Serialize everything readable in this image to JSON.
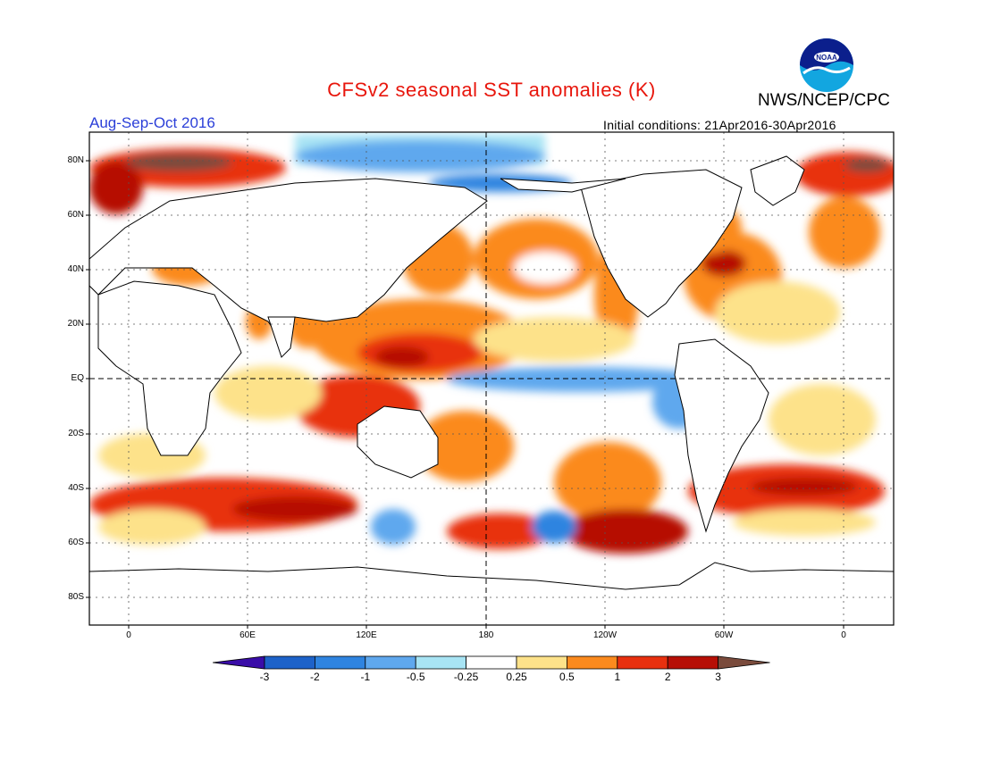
{
  "title": "CFSv2 seasonal SST anomalies (K)",
  "agency": "NWS/NCEP/CPC",
  "season": "Aug-Sep-Oct 2016",
  "initial_conditions": "Initial conditions: 21Apr2016-30Apr2016",
  "logo_text": "NOAA",
  "lat_labels": [
    "80N",
    "60N",
    "40N",
    "20N",
    "EQ",
    "20S",
    "40S",
    "60S",
    "80S"
  ],
  "lon_labels": [
    "0",
    "60E",
    "120E",
    "180",
    "120W",
    "60W",
    "0"
  ],
  "colorbar": {
    "labels": [
      "-3",
      "-2",
      "-1",
      "-0.5",
      "-0.25",
      "0.25",
      "0.5",
      "1",
      "2",
      "3"
    ],
    "colors": [
      "#3a0da8",
      "#1d62c9",
      "#2f84e0",
      "#5fa8ee",
      "#a8e4f4",
      "#ffffff",
      "#fde28a",
      "#fb8a1e",
      "#e8300e",
      "#b60f06",
      "#7a4b3c"
    ]
  },
  "palette": {
    "title_red": "#e8160c",
    "season_blue": "#2b3fd8"
  }
}
